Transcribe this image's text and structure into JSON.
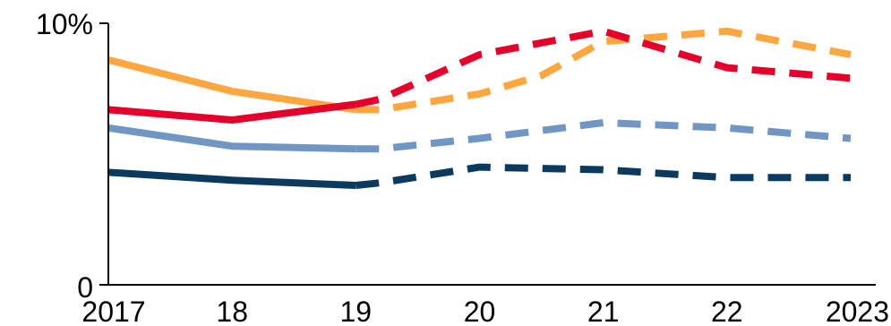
{
  "chart_data": {
    "type": "line",
    "categories": [
      "2017",
      "18",
      "19",
      "20",
      "21",
      "22",
      "2023"
    ],
    "x": [
      2017,
      2018,
      2019,
      2020,
      2021,
      2022,
      2023
    ],
    "ylim": [
      0,
      10
    ],
    "y_ticks": [
      {
        "value": 0,
        "label": "0"
      },
      {
        "value": 10,
        "label": "10%"
      }
    ],
    "actual_through": 2019,
    "forecast_from": 2019,
    "line_styles": {
      "actual": "solid",
      "forecast": "dashed"
    },
    "grid": false,
    "legend": "none",
    "series": [
      {
        "color": "#FFA640",
        "points": [
          [
            2017,
            8.6
          ],
          [
            2018,
            7.4
          ],
          [
            2019,
            6.7
          ],
          [
            2019.2,
            6.7
          ],
          [
            2020,
            7.3
          ],
          [
            2020.5,
            8.0
          ],
          [
            2021,
            9.3
          ],
          [
            2022,
            9.7
          ],
          [
            2023,
            8.8
          ]
        ]
      },
      {
        "color": "#E4002B",
        "points": [
          [
            2017,
            6.7
          ],
          [
            2018,
            6.3
          ],
          [
            2019,
            6.9
          ],
          [
            2019.2,
            7.1
          ],
          [
            2020,
            8.8
          ],
          [
            2021,
            9.7
          ],
          [
            2022,
            8.3
          ],
          [
            2023,
            7.9
          ]
        ]
      },
      {
        "color": "#7196C4",
        "points": [
          [
            2017,
            6.0
          ],
          [
            2018,
            5.3
          ],
          [
            2019,
            5.2
          ],
          [
            2019.2,
            5.2
          ],
          [
            2020,
            5.6
          ],
          [
            2021,
            6.2
          ],
          [
            2022,
            6.0
          ],
          [
            2023,
            5.6
          ]
        ]
      },
      {
        "color": "#0B3A5E",
        "points": [
          [
            2017,
            4.3
          ],
          [
            2018,
            4.0
          ],
          [
            2019,
            3.8
          ],
          [
            2019.2,
            3.9
          ],
          [
            2020,
            4.5
          ],
          [
            2021,
            4.4
          ],
          [
            2022,
            4.1
          ],
          [
            2023,
            4.1
          ]
        ]
      }
    ]
  }
}
